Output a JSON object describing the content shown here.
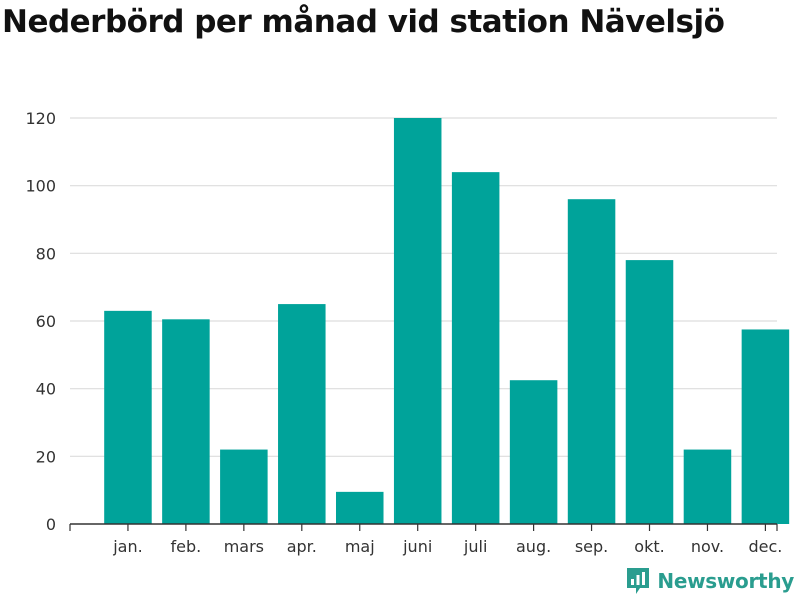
{
  "title": "Nederbörd per månad vid station Nävelsjö",
  "brand": {
    "name": "Newsworthy",
    "icon": "newsworthy-logo-icon",
    "color": "#2a9d8f"
  },
  "colors": {
    "bar": "#00a39a",
    "grid": "#dddddd",
    "axis": "#333333"
  },
  "chart_data": {
    "type": "bar",
    "title": "Nederbörd per månad vid station Nävelsjö",
    "xlabel": "",
    "ylabel": "",
    "categories": [
      "jan.",
      "feb.",
      "mars",
      "apr.",
      "maj",
      "juni",
      "juli",
      "aug.",
      "sep.",
      "okt.",
      "nov.",
      "dec."
    ],
    "values": [
      63,
      60.5,
      22,
      65,
      9.5,
      120,
      104,
      42.5,
      96,
      78,
      22,
      57.5
    ],
    "ylim": [
      0,
      120
    ],
    "yticks": [
      0,
      20,
      40,
      60,
      80,
      100,
      120
    ],
    "grid": true,
    "legend": "none"
  }
}
